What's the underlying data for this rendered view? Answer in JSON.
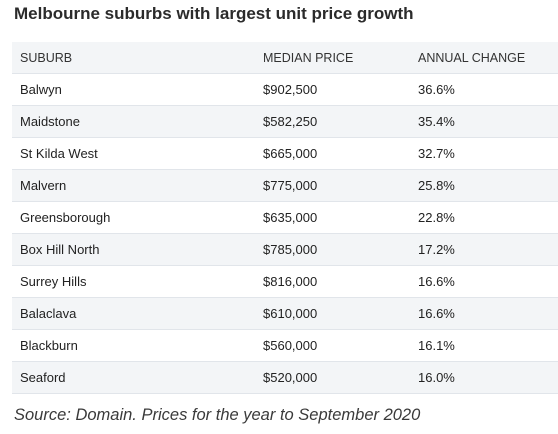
{
  "title": "Melbourne suburbs with largest unit price growth",
  "source": "Source: Domain. Prices for the year to September 2020",
  "chart_data": {
    "type": "table",
    "title": "Melbourne suburbs with largest unit price growth",
    "columns": [
      "SUBURB",
      "MEDIAN PRICE",
      "ANNUAL CHANGE"
    ],
    "rows": [
      [
        "Balwyn",
        "$902,500",
        "36.6%"
      ],
      [
        "Maidstone",
        "$582,250",
        "35.4%"
      ],
      [
        "St Kilda West",
        "$665,000",
        "32.7%"
      ],
      [
        "Malvern",
        "$775,000",
        "25.8%"
      ],
      [
        "Greensborough",
        "$635,000",
        "22.8%"
      ],
      [
        "Box Hill North",
        "$785,000",
        "17.2%"
      ],
      [
        "Surrey Hills",
        "$816,000",
        "16.6%"
      ],
      [
        "Balaclava",
        "$610,000",
        "16.6%"
      ],
      [
        "Blackburn",
        "$560,000",
        "16.1%"
      ],
      [
        "Seaford",
        "$520,000",
        "16.0%"
      ]
    ]
  }
}
